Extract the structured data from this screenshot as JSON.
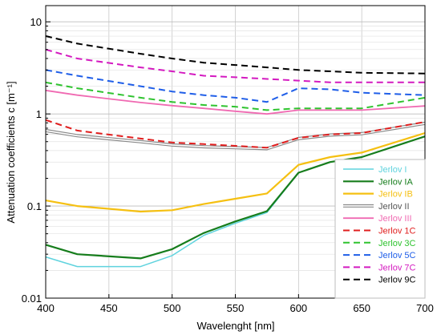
{
  "chart_data": {
    "type": "line",
    "title": "",
    "xlabel": "Wavelenght  [nm]",
    "ylabel": "Attenuation coefficients  c  [m⁻¹]",
    "x_scale": "linear",
    "y_scale": "log",
    "xlim": [
      400,
      700
    ],
    "ylim": [
      0.01,
      15
    ],
    "grid": true,
    "legend_position": "bottom-right",
    "x_ticks": [
      {
        "value": 400,
        "label": "400"
      },
      {
        "value": 450,
        "label": "450"
      },
      {
        "value": 500,
        "label": "500"
      },
      {
        "value": 550,
        "label": "550"
      },
      {
        "value": 600,
        "label": "600"
      },
      {
        "value": 650,
        "label": "650"
      },
      {
        "value": 700,
        "label": "700"
      }
    ],
    "y_ticks": [
      {
        "value": 0.01,
        "label": "0.01"
      },
      {
        "value": 0.1,
        "label": "0.1"
      },
      {
        "value": 1,
        "label": "1"
      },
      {
        "value": 10,
        "label": "10"
      }
    ],
    "series": [
      {
        "name": "Jerlov I",
        "color": "#5fd3de",
        "style": "solid",
        "width": 1.5,
        "x": [
          400,
          425,
          475,
          500,
          525,
          550,
          575,
          600,
          625,
          650,
          700
        ],
        "y": [
          0.028,
          0.022,
          0.022,
          0.029,
          0.048,
          0.065,
          0.085,
          0.23,
          0.3,
          0.34,
          0.57
        ]
      },
      {
        "name": "Jerlov IA",
        "color": "#167d1c",
        "style": "solid",
        "width": 2.2,
        "x": [
          400,
          425,
          475,
          500,
          525,
          550,
          575,
          600,
          625,
          650,
          700
        ],
        "y": [
          0.038,
          0.03,
          0.027,
          0.034,
          0.051,
          0.068,
          0.088,
          0.23,
          0.3,
          0.34,
          0.57
        ]
      },
      {
        "name": "Jerlov IB",
        "color": "#f5c012",
        "style": "solid",
        "width": 2.2,
        "x": [
          400,
          425,
          475,
          500,
          525,
          550,
          575,
          600,
          625,
          650,
          700
        ],
        "y": [
          0.115,
          0.1,
          0.087,
          0.09,
          0.105,
          0.12,
          0.137,
          0.28,
          0.34,
          0.38,
          0.62
        ]
      },
      {
        "name": "Jerlov II",
        "color": "#a9a9a9",
        "style": "double",
        "width": 1.5,
        "x": [
          400,
          425,
          475,
          500,
          525,
          550,
          575,
          600,
          625,
          650,
          700
        ],
        "y": [
          0.66,
          0.58,
          0.5,
          0.46,
          0.44,
          0.43,
          0.42,
          0.54,
          0.59,
          0.61,
          0.79
        ]
      },
      {
        "name": "Jerlov III",
        "color": "#f06ab2",
        "style": "solid",
        "width": 1.8,
        "x": [
          400,
          425,
          475,
          500,
          525,
          550,
          575,
          600,
          625,
          650,
          700
        ],
        "y": [
          1.8,
          1.6,
          1.33,
          1.23,
          1.15,
          1.07,
          1.0,
          1.1,
          1.1,
          1.1,
          1.22
        ]
      },
      {
        "name": "Jerlov 1C",
        "color": "#e01e1e",
        "style": "dashed",
        "width": 2,
        "x": [
          400,
          425,
          475,
          500,
          525,
          550,
          575,
          600,
          625,
          650,
          700
        ],
        "y": [
          0.86,
          0.66,
          0.54,
          0.49,
          0.47,
          0.45,
          0.43,
          0.55,
          0.6,
          0.62,
          0.82
        ]
      },
      {
        "name": "Jerlov 3C",
        "color": "#2fc32f",
        "style": "dashed",
        "width": 2,
        "x": [
          400,
          425,
          475,
          500,
          525,
          550,
          575,
          600,
          625,
          650,
          700
        ],
        "y": [
          2.2,
          1.9,
          1.5,
          1.35,
          1.25,
          1.2,
          1.1,
          1.15,
          1.15,
          1.15,
          1.5
        ]
      },
      {
        "name": "Jerlov 5C",
        "color": "#1f5ee8",
        "style": "dashed",
        "width": 2,
        "x": [
          400,
          425,
          475,
          500,
          525,
          550,
          575,
          600,
          625,
          650,
          700
        ],
        "y": [
          3.0,
          2.6,
          2.0,
          1.75,
          1.6,
          1.5,
          1.35,
          1.9,
          1.85,
          1.7,
          1.6
        ]
      },
      {
        "name": "Jerlov 7C",
        "color": "#d41ac0",
        "style": "dashed",
        "width": 2,
        "x": [
          400,
          425,
          475,
          500,
          525,
          550,
          575,
          600,
          625,
          650,
          700
        ],
        "y": [
          5.0,
          4.0,
          3.2,
          2.9,
          2.6,
          2.5,
          2.4,
          2.3,
          2.2,
          2.2,
          2.2
        ]
      },
      {
        "name": "Jerlov 9C",
        "color": "#000000",
        "style": "dashed",
        "width": 2,
        "x": [
          400,
          425,
          475,
          500,
          525,
          550,
          575,
          600,
          625,
          650,
          700
        ],
        "y": [
          7.0,
          5.8,
          4.5,
          4.0,
          3.6,
          3.4,
          3.2,
          3.0,
          2.9,
          2.8,
          2.75
        ]
      }
    ]
  }
}
